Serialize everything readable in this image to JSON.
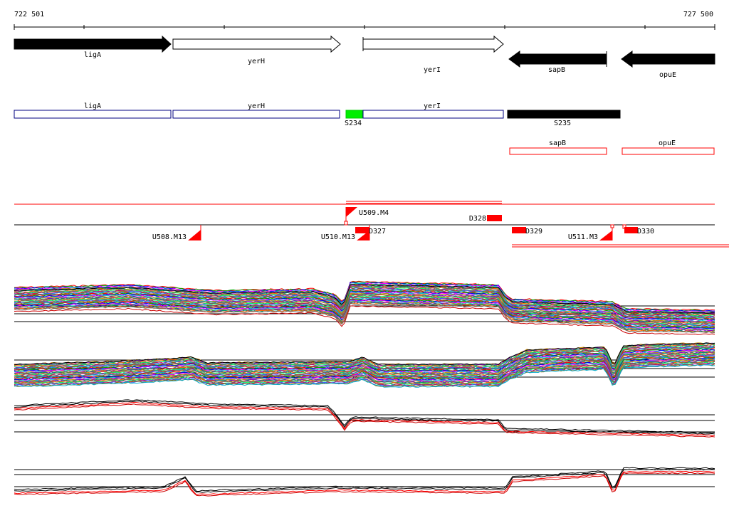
{
  "coords": {
    "start": "722 501",
    "end": "727 500"
  },
  "colors": {
    "red": "#ff0000",
    "green": "#00ee00",
    "blue": "#000080",
    "black": "#000000"
  },
  "genes": [
    {
      "label": "ligA",
      "strand": "+",
      "filled": true
    },
    {
      "label": "yerH",
      "strand": "+",
      "filled": false
    },
    {
      "label": "yerI",
      "strand": "+",
      "filled": false
    },
    {
      "label": "sapB",
      "strand": "-",
      "filled": true
    },
    {
      "label": "opuE",
      "strand": "-",
      "filled": true
    }
  ],
  "transcripts": [
    {
      "label": "ligA"
    },
    {
      "label": "yerH"
    },
    {
      "label": "yerI"
    }
  ],
  "segments": [
    {
      "label": "S234",
      "color": "#00ee00"
    },
    {
      "label": "S235",
      "color": "#000000"
    }
  ],
  "reverse_transcripts": [
    {
      "label": "sapB"
    },
    {
      "label": "opuE"
    }
  ],
  "upstream_features": [
    {
      "label": "U508.M13"
    },
    {
      "label": "U509.M4"
    },
    {
      "label": "U510.M13"
    },
    {
      "label": "U511.M3"
    }
  ],
  "downstream_features": [
    {
      "label": "D327"
    },
    {
      "label": "D328"
    },
    {
      "label": "D329"
    },
    {
      "label": "D330"
    }
  ]
}
